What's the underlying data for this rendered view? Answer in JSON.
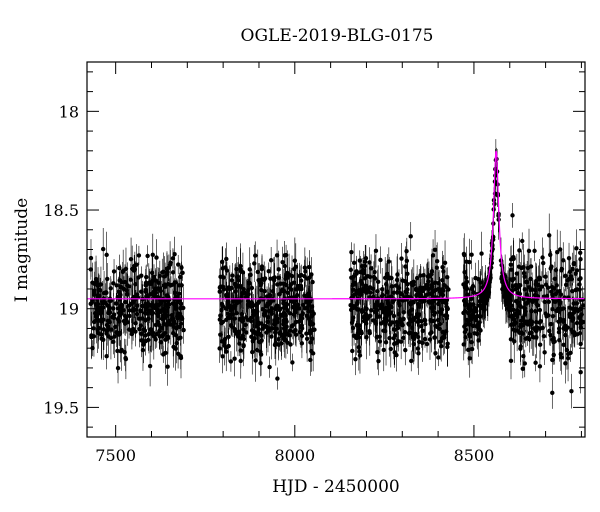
{
  "chart_data": {
    "type": "scatter",
    "title": "OGLE-2019-BLG-0175",
    "xlabel": "HJD - 2450000",
    "ylabel": "I magnitude",
    "xlim": [
      7420,
      8810
    ],
    "ylim": [
      19.65,
      17.75
    ],
    "y_inverted": true,
    "x_ticks": [
      7500,
      8000,
      8500
    ],
    "y_ticks": [
      18,
      18.5,
      19,
      19.5
    ],
    "x_tick_labels": [
      "7500",
      "8000",
      "8500"
    ],
    "y_tick_labels": [
      "18",
      "18.5",
      "19",
      "19.5"
    ],
    "grid": false,
    "legend": "none",
    "series": [
      {
        "kind": "photometry",
        "color": "#000000",
        "seasons": [
          {
            "start": 7430,
            "end": 7690,
            "mean_mag": 19.0,
            "scatter_mag": 0.12
          },
          {
            "start": 7790,
            "end": 8055,
            "mean_mag": 19.0,
            "scatter_mag": 0.12
          },
          {
            "start": 8155,
            "end": 8430,
            "mean_mag": 19.0,
            "scatter_mag": 0.12
          },
          {
            "start": 8470,
            "end": 8805,
            "mean_mag": 19.0,
            "scatter_mag": 0.14
          }
        ]
      },
      {
        "kind": "model",
        "color": "#ff00ff",
        "baseline_mag": 18.95,
        "peak_time": 8562,
        "peak_mag": 18.2,
        "time_scale_days": 22
      }
    ]
  }
}
